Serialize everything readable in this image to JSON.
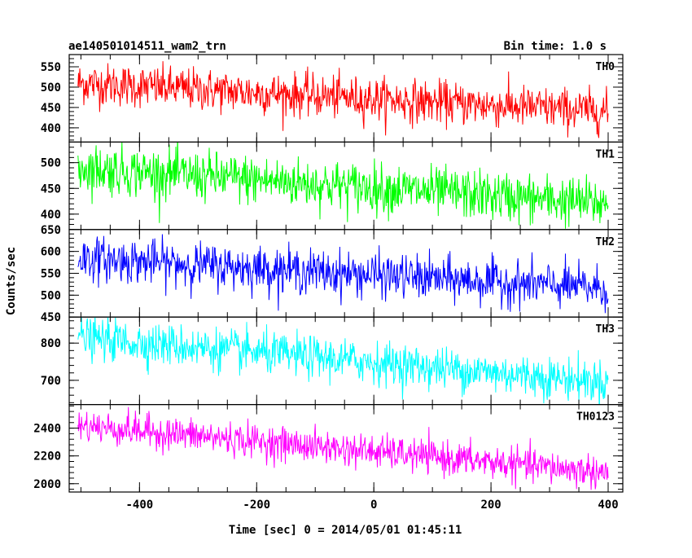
{
  "chart_data": {
    "type": "line",
    "title": "ae140501014511_wam2_trn",
    "subtitle": "Bin time: 1.0 s",
    "xlabel": "Time [sec] 0 = 2014/05/01 01:45:11",
    "ylabel": "Counts/sec",
    "xlim": [
      -520,
      425
    ],
    "x_ticks": [
      -400,
      -200,
      0,
      200,
      400
    ],
    "x_data_range": [
      -505,
      400
    ],
    "grid": false,
    "panels": [
      {
        "name": "TH0",
        "color": "#ff0000",
        "ylim": [
          365,
          580
        ],
        "y_ticks": [
          400,
          450,
          500,
          550
        ],
        "trend_start": 510,
        "trend_end": 440,
        "noise_sd": 26
      },
      {
        "name": "TH1",
        "color": "#00ff00",
        "ylim": [
          370,
          540
        ],
        "y_ticks": [
          400,
          450,
          500
        ],
        "trend_start": 490,
        "trend_end": 420,
        "noise_sd": 24
      },
      {
        "name": "TH2",
        "color": "#0000ff",
        "ylim": [
          450,
          650
        ],
        "y_ticks": [
          450,
          500,
          550,
          600,
          650
        ],
        "trend_start": 585,
        "trend_end": 515,
        "noise_sd": 25
      },
      {
        "name": "TH3",
        "color": "#00ffff",
        "ylim": [
          635,
          870
        ],
        "y_ticks": [
          700,
          800
        ],
        "trend_start": 815,
        "trend_end": 695,
        "noise_sd": 28
      },
      {
        "name": "TH0123",
        "color": "#ff00ff",
        "ylim": [
          1940,
          2570
        ],
        "y_ticks": [
          2000,
          2200,
          2400
        ],
        "trend_start": 2420,
        "trend_end": 2080,
        "noise_sd": 60
      }
    ]
  }
}
